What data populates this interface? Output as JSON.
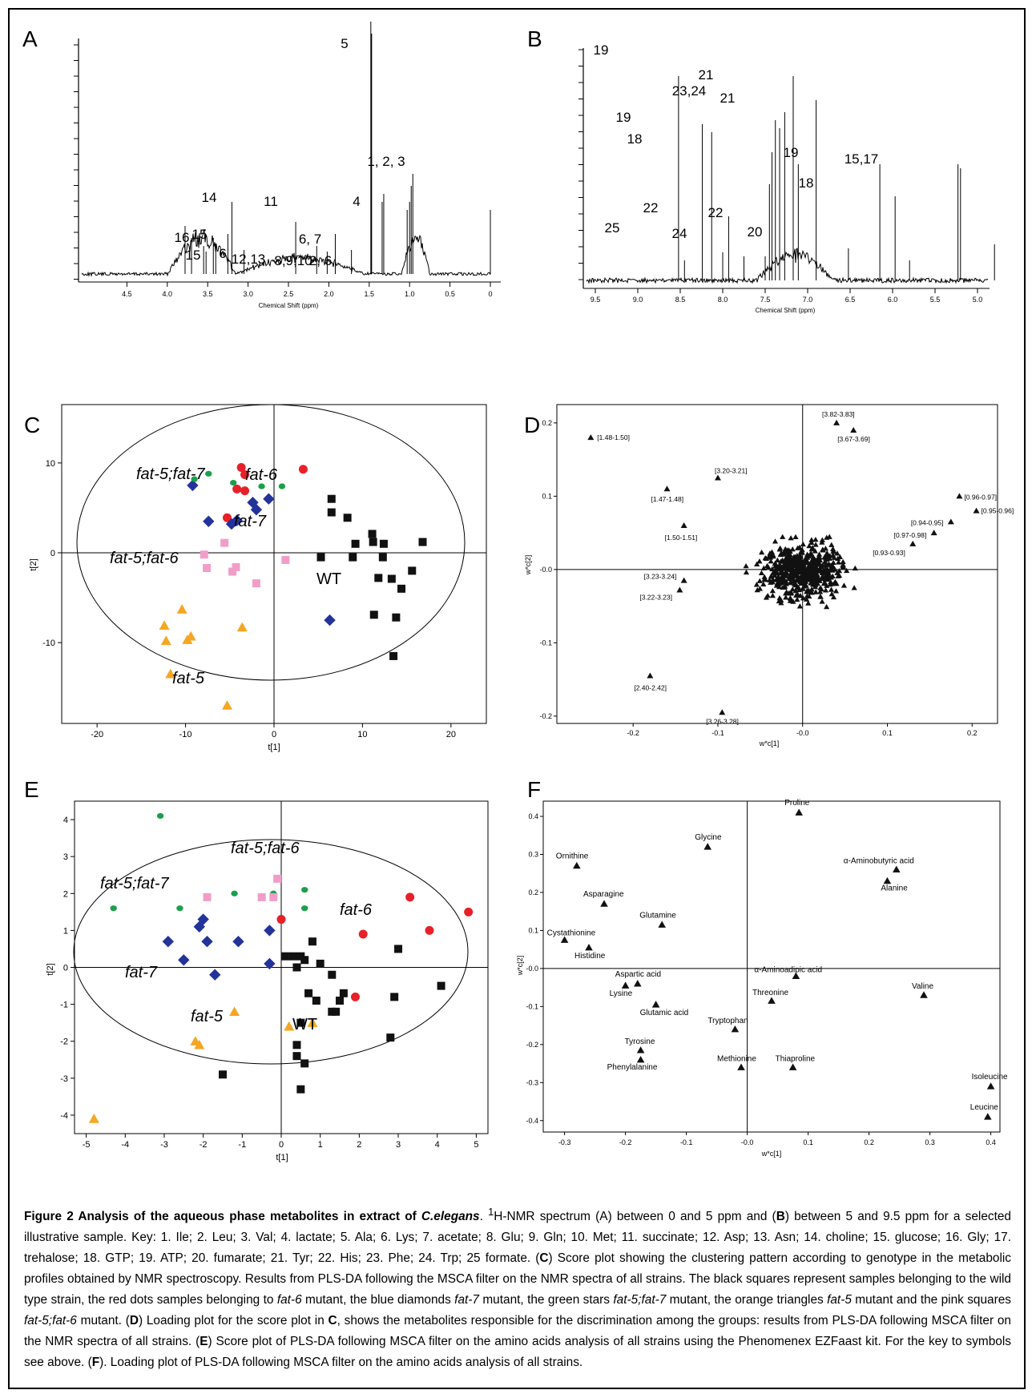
{
  "panelA": {
    "label": "A",
    "x_title": "Chemical Shift (ppm)",
    "x_ticks": [
      "4.5",
      "4.0",
      "3.5",
      "3.0",
      "2.5",
      "2.0",
      "1.5",
      "1.0",
      "0.5",
      "0"
    ],
    "peak_labels": [
      "5",
      "1, 2, 3",
      "4",
      "14",
      "11",
      "6, 7",
      "16",
      "15",
      "15",
      "6",
      "12,13",
      "8,9,10",
      "2, 6"
    ]
  },
  "panelB": {
    "label": "B",
    "x_title": "Chemical Shift (ppm)",
    "x_ticks": [
      "9.5",
      "9.0",
      "8.5",
      "8.0",
      "7.5",
      "7.0",
      "6.5",
      "6.0",
      "5.5",
      "5.0"
    ],
    "peak_labels": [
      "19",
      "19",
      "18",
      "25",
      "22",
      "23,24",
      "21",
      "21",
      "22",
      "24",
      "20",
      "19",
      "18",
      "15,17"
    ]
  },
  "panelC": {
    "label": "C",
    "x_title": "t[1]",
    "y_title": "t[2]",
    "x_ticks": [
      "-20",
      "-10",
      "0",
      "10",
      "20"
    ],
    "y_ticks": [
      "10",
      "0",
      "-10"
    ],
    "group_labels": [
      "fat-5;fat-7",
      "fat-6",
      "fat-7",
      "fat-5;fat-6",
      "WT",
      "fat-5"
    ]
  },
  "panelD": {
    "label": "D",
    "x_title": "w*c[1]",
    "y_title": "w*c[2]",
    "x_ticks": [
      "-0.2",
      "-0.1",
      "-0.0",
      "0.1",
      "0.2"
    ],
    "y_ticks": [
      "0.2",
      "0.1",
      "-0.0",
      "-0.1",
      "-0.2"
    ],
    "point_labels": [
      "[1.48-1.50]",
      "[3.82-3.83]",
      "[3.67-3.69]",
      "[1.47-1.48]",
      "[3.20-3.21]",
      "[1.50-1.51]",
      "[0.96-0.97]",
      "[0.95-0.96]",
      "[0.94-0.95]",
      "[0.97-0.98]",
      "[0.93-0.93]",
      "[3.23-3.24]",
      "[3.22-3.23]",
      "[2.40-2.42]",
      "[3.26-3.28]"
    ]
  },
  "panelE": {
    "label": "E",
    "x_title": "t[1]",
    "y_title": "t[2]",
    "x_ticks": [
      "-5",
      "-4",
      "-3",
      "-2",
      "-1",
      "0",
      "1",
      "2",
      "3",
      "4",
      "5"
    ],
    "y_ticks": [
      "4",
      "3",
      "2",
      "1",
      "0",
      "-1",
      "-2",
      "-3",
      "-4"
    ],
    "group_labels": [
      "fat-5;fat-6",
      "fat-5;fat-7",
      "fat-6",
      "fat-7",
      "fat-5",
      "WT"
    ]
  },
  "panelF": {
    "label": "F",
    "x_title": "w*c[1]",
    "y_title": "w*c[2]",
    "x_ticks": [
      "-0.3",
      "-0.2",
      "-0.1",
      "-0.0",
      "0.1",
      "0.2",
      "0.3",
      "0.4"
    ],
    "y_ticks": [
      "0.4",
      "0.3",
      "0.2",
      "0.1",
      "-0.0",
      "-0.1",
      "-0.2",
      "-0.3",
      "-0.4"
    ]
  },
  "chart_data": [
    {
      "type": "scatter",
      "panel": "C",
      "xlabel": "t[1]",
      "ylabel": "t[2]",
      "xlim": [
        -24,
        24
      ],
      "ylim": [
        -19,
        16.5
      ],
      "series": [
        {
          "name": "WT",
          "marker": "square",
          "color": "#111111",
          "points": [
            [
              6.5,
              6
            ],
            [
              6.5,
              4.5
            ],
            [
              8.3,
              3.9
            ],
            [
              9.2,
              1
            ],
            [
              11.1,
              2.1
            ],
            [
              11.2,
              1.2
            ],
            [
              12.4,
              1
            ],
            [
              16.8,
              1.2
            ],
            [
              5.3,
              -0.5
            ],
            [
              8.9,
              -0.5
            ],
            [
              12.3,
              -0.5
            ],
            [
              11.8,
              -2.8
            ],
            [
              13.3,
              -2.9
            ],
            [
              14.4,
              -4
            ],
            [
              15.6,
              -2
            ],
            [
              11.3,
              -6.9
            ],
            [
              13.8,
              -7.2
            ],
            [
              13.5,
              -11.5
            ]
          ]
        },
        {
          "name": "fat-6",
          "marker": "circle",
          "color": "#e8202a",
          "points": [
            [
              -3.7,
              9.5
            ],
            [
              -3.3,
              8.7
            ],
            [
              3.3,
              9.3
            ],
            [
              -4.2,
              7.1
            ],
            [
              -3.3,
              6.9
            ],
            [
              -5.3,
              3.9
            ]
          ]
        },
        {
          "name": "fat-7",
          "marker": "diamond",
          "color": "#23339a",
          "points": [
            [
              -9.2,
              7.5
            ],
            [
              -7.4,
              3.5
            ],
            [
              -2.4,
              5.6
            ],
            [
              -2,
              4.8
            ],
            [
              -0.6,
              6
            ],
            [
              -4.8,
              3.2
            ],
            [
              -4.2,
              3.6
            ],
            [
              6.3,
              -7.5
            ]
          ]
        },
        {
          "name": "fat-5;fat-7",
          "marker": "star",
          "color": "#1aa04a",
          "points": [
            [
              -9,
              8.2
            ],
            [
              -7.4,
              8.8
            ],
            [
              -4.6,
              7.8
            ],
            [
              -1.4,
              7.4
            ],
            [
              0.9,
              7.4
            ]
          ]
        },
        {
          "name": "fat-5",
          "marker": "triangle",
          "color": "#f5a623",
          "points": [
            [
              -10.4,
              -6.3
            ],
            [
              -12.4,
              -8.1
            ],
            [
              -12.2,
              -9.8
            ],
            [
              -9.8,
              -9.7
            ],
            [
              -9.4,
              -9.3
            ],
            [
              -3.6,
              -8.3
            ],
            [
              -11.7,
              -13.5
            ],
            [
              -5.3,
              -17
            ]
          ]
        },
        {
          "name": "fat-5;fat-6",
          "marker": "square",
          "color": "#f09ec9",
          "points": [
            [
              -7.9,
              -0.2
            ],
            [
              -5.6,
              1.1
            ],
            [
              -4.3,
              -1.6
            ],
            [
              -4.7,
              -2.1
            ],
            [
              -7.6,
              -1.7
            ],
            [
              -2,
              -3.4
            ],
            [
              1.3,
              -0.8
            ]
          ]
        }
      ]
    },
    {
      "type": "scatter",
      "panel": "D",
      "xlabel": "w*c[1]",
      "ylabel": "w*c[2]",
      "xlim": [
        -0.29,
        0.23
      ],
      "ylim": [
        -0.21,
        0.225
      ],
      "labeled_points": [
        {
          "label": "[1.48-1.50]",
          "x": -0.25,
          "y": 0.18
        },
        {
          "label": "[3.82-3.83]",
          "x": 0.04,
          "y": 0.2
        },
        {
          "label": "[3.67-3.69]",
          "x": 0.06,
          "y": 0.19
        },
        {
          "label": "[1.47-1.48]",
          "x": -0.16,
          "y": 0.11
        },
        {
          "label": "[3.20-3.21]",
          "x": -0.1,
          "y": 0.125
        },
        {
          "label": "[1.50-1.51]",
          "x": -0.14,
          "y": 0.06
        },
        {
          "label": "[0.96-0.97]",
          "x": 0.185,
          "y": 0.1
        },
        {
          "label": "[0.95-0.96]",
          "x": 0.205,
          "y": 0.08
        },
        {
          "label": "[0.94-0.95]",
          "x": 0.175,
          "y": 0.065
        },
        {
          "label": "[0.97-0.98]",
          "x": 0.155,
          "y": 0.05
        },
        {
          "label": "[0.93-0.93]",
          "x": 0.13,
          "y": 0.035
        },
        {
          "label": "[3.23-3.24]",
          "x": -0.14,
          "y": -0.015
        },
        {
          "label": "[3.22-3.23]",
          "x": -0.145,
          "y": -0.028
        },
        {
          "label": "[2.40-2.42]",
          "x": -0.18,
          "y": -0.145
        },
        {
          "label": "[3.26-3.28]",
          "x": -0.095,
          "y": -0.195
        }
      ]
    },
    {
      "type": "scatter",
      "panel": "E",
      "xlabel": "t[1]",
      "ylabel": "t[2]",
      "xlim": [
        -5.3,
        5.3
      ],
      "ylim": [
        -4.5,
        4.5
      ],
      "series": [
        {
          "name": "WT",
          "marker": "square",
          "color": "#111111",
          "points": [
            [
              0.8,
              0.7
            ],
            [
              0.1,
              0.3
            ],
            [
              0.3,
              0.3
            ],
            [
              0.5,
              0.3
            ],
            [
              0.6,
              0.2
            ],
            [
              0.4,
              0
            ],
            [
              1,
              0.1
            ],
            [
              1.3,
              -0.2
            ],
            [
              0.7,
              -0.7
            ],
            [
              0.9,
              -0.9
            ],
            [
              1.6,
              -0.7
            ],
            [
              1.5,
              -0.9
            ],
            [
              0.5,
              -1.5
            ],
            [
              1.3,
              -1.2
            ],
            [
              1.4,
              -1.2
            ],
            [
              0.4,
              -2.1
            ],
            [
              0.6,
              -2.6
            ],
            [
              0.4,
              -2.4
            ],
            [
              0.5,
              -3.3
            ],
            [
              -1.5,
              -2.9
            ],
            [
              2.8,
              -1.9
            ],
            [
              3,
              0.5
            ],
            [
              2.9,
              -0.8
            ],
            [
              4.1,
              -0.5
            ]
          ]
        },
        {
          "name": "fat-6",
          "marker": "circle",
          "color": "#e8202a",
          "points": [
            [
              3.3,
              1.9
            ],
            [
              4.8,
              1.5
            ],
            [
              3.8,
              1
            ],
            [
              2.1,
              0.9
            ],
            [
              0,
              1.3
            ],
            [
              1.9,
              -0.8
            ]
          ]
        },
        {
          "name": "fat-7",
          "marker": "diamond",
          "color": "#23339a",
          "points": [
            [
              -2,
              1.3
            ],
            [
              -2.1,
              1.1
            ],
            [
              -1.9,
              0.7
            ],
            [
              -1.1,
              0.7
            ],
            [
              -0.3,
              1
            ],
            [
              -2.9,
              0.7
            ],
            [
              -0.3,
              0.1
            ],
            [
              -2.5,
              0.2
            ],
            [
              -1.7,
              -0.2
            ]
          ]
        },
        {
          "name": "fat-5;fat-7",
          "marker": "star",
          "color": "#1aa04a",
          "points": [
            [
              -3.1,
              4.1
            ],
            [
              -4.3,
              1.6
            ],
            [
              -2.6,
              1.6
            ],
            [
              -1.2,
              2
            ],
            [
              -0.2,
              2
            ],
            [
              0.6,
              2.1
            ],
            [
              0.6,
              1.6
            ]
          ]
        },
        {
          "name": "fat-5",
          "marker": "triangle",
          "color": "#f5a623",
          "points": [
            [
              -1.2,
              -1.2
            ],
            [
              -2.2,
              -2
            ],
            [
              -2.1,
              -2.1
            ],
            [
              0.2,
              -1.6
            ],
            [
              0.8,
              -1.5
            ],
            [
              -4.8,
              -4.1
            ]
          ]
        },
        {
          "name": "fat-5;fat-6",
          "marker": "square",
          "color": "#f09ec9",
          "points": [
            [
              -1.9,
              1.9
            ],
            [
              -0.5,
              1.9
            ],
            [
              -0.2,
              1.9
            ],
            [
              -0.1,
              2.4
            ]
          ]
        }
      ]
    },
    {
      "type": "scatter",
      "panel": "F",
      "xlabel": "w*c[1]",
      "ylabel": "w*c[2]",
      "xlim": [
        -0.335,
        0.415
      ],
      "ylim": [
        -0.43,
        0.44
      ],
      "points": [
        {
          "label": "Proline",
          "x": 0.085,
          "y": 0.41
        },
        {
          "label": "Glycine",
          "x": -0.065,
          "y": 0.32
        },
        {
          "label": "Ornithine",
          "x": -0.28,
          "y": 0.27
        },
        {
          "label": "α-Aminobutyric acid",
          "x": 0.245,
          "y": 0.26
        },
        {
          "label": "Alanine",
          "x": 0.23,
          "y": 0.23
        },
        {
          "label": "Asparagine",
          "x": -0.235,
          "y": 0.17
        },
        {
          "label": "Glutamine",
          "x": -0.14,
          "y": 0.115
        },
        {
          "label": "Cystathionine",
          "x": -0.3,
          "y": 0.075
        },
        {
          "label": "Histidine",
          "x": -0.26,
          "y": 0.055
        },
        {
          "label": "Aspartic acid",
          "x": -0.18,
          "y": -0.04
        },
        {
          "label": "Lysine",
          "x": -0.2,
          "y": -0.045
        },
        {
          "label": "α-Aminoadipic acid",
          "x": 0.08,
          "y": -0.02
        },
        {
          "label": "Threonine",
          "x": 0.04,
          "y": -0.085
        },
        {
          "label": "Valine",
          "x": 0.29,
          "y": -0.07
        },
        {
          "label": "Glutamic acid",
          "x": -0.15,
          "y": -0.095
        },
        {
          "label": "Tryptophan",
          "x": -0.02,
          "y": -0.16
        },
        {
          "label": "Tyrosine",
          "x": -0.175,
          "y": -0.215
        },
        {
          "label": "Phenylalanine",
          "x": -0.175,
          "y": -0.24
        },
        {
          "label": "Methionine",
          "x": -0.01,
          "y": -0.26
        },
        {
          "label": "Thiaproline",
          "x": 0.075,
          "y": -0.26
        },
        {
          "label": "Isoleucine",
          "x": 0.4,
          "y": -0.31
        },
        {
          "label": "Leucine",
          "x": 0.395,
          "y": -0.39
        }
      ]
    }
  ],
  "caption": {
    "fig_label": "Figure 2 Analysis of the aqueous phase metabolites in extract of ",
    "fig_species": "C.elegans",
    "period": ".",
    "sup": "1",
    "t1": "H-NMR spectrum (A) between 0 and 5 ppm and (",
    "bB": "B",
    "t2": ") between 5 and 9.5 ppm for a selected illustrative sample. Key: 1. Ile; 2. Leu; 3. Val; 4. lactate; 5. Ala; 6. Lys; 7. acetate; 8. Glu; 9. Gln; 10. Met; 11. succinate; 12. Asp; 13. Asn; 14. choline; 15. glucose; 16. Gly; 17. trehalose; 18. GTP; 19. ATP; 20. fumarate; 21. Tyr; 22. His; 23. Phe; 24. Trp; 25 formate. (",
    "bC": "C",
    "t3": ") Score plot showing the clustering pattern according to genotype in the metabolic profiles obtained by NMR spectroscopy. Results from PLS-DA following the MSCA filter on the NMR spectra of all strains. The black squares represent samples belonging to the wild type strain, the red dots samples belonging to ",
    "i1": "fat-6",
    "t4": " mutant, the blue diamonds ",
    "i2": "fat-7",
    "t5": " mutant, the green stars ",
    "i3": "fat-5;fat-7",
    "t6": " mutant, the orange triangles ",
    "i4": "fat-5",
    "t7": " mutant and the pink squares ",
    "i5": "fat-5;fat-6",
    "t8": " mutant. (",
    "bD": "D",
    "t9": ") Loading plot for the score plot in ",
    "bC2": "C",
    "t10": ", shows the metabolites responsible for the discrimination among the groups: results from PLS-DA following MSCA filter on the NMR spectra of all strains. (",
    "bE": "E",
    "t11": ") Score plot of PLS-DA following MSCA filter on the amino acids analysis of all strains using the Phenomenex EZFaast kit. For the key to symbols see above. (",
    "bF": "F",
    "t12": "). Loading plot of PLS-DA following MSCA filter on the amino acids analysis of all strains."
  }
}
